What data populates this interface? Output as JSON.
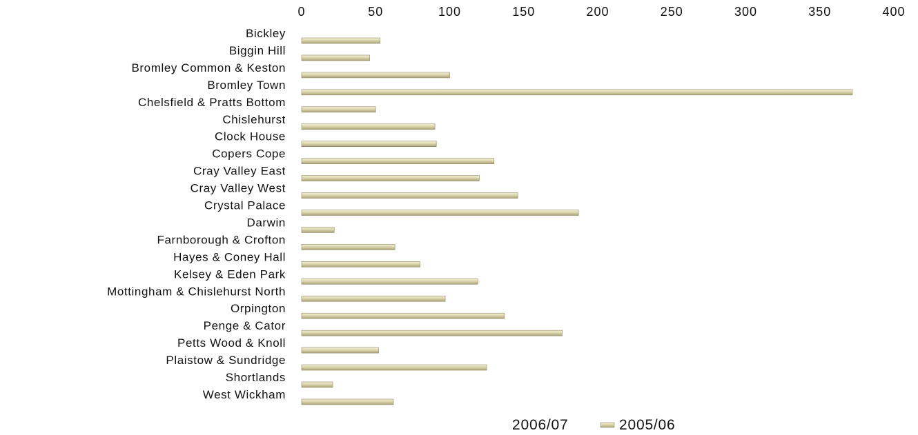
{
  "chart_data": {
    "type": "bar",
    "orientation": "horizontal",
    "categories": [
      "Bickley",
      "Biggin Hill",
      "Bromley Common & Keston",
      "Bromley Town",
      "Chelsfield & Pratts Bottom",
      "Chislehurst",
      "Clock House",
      "Copers Cope",
      "Cray Valley East",
      "Cray Valley West",
      "Crystal Palace",
      "Darwin",
      "Farnborough & Crofton",
      "Hayes & Coney Hall",
      "Kelsey & Eden Park",
      "Mottingham & Chislehurst North",
      "Orpington",
      "Penge & Cator",
      "Petts Wood & Knoll",
      "Plaistow & Sundridge",
      "Shortlands",
      "West Wickham"
    ],
    "series": [
      {
        "name": "2006/07",
        "color": "#ffffff",
        "values": [
          0,
          0,
          0,
          0,
          0,
          0,
          0,
          0,
          0,
          0,
          0,
          0,
          0,
          0,
          0,
          0,
          0,
          0,
          0,
          0,
          0,
          0
        ]
      },
      {
        "name": "2005/06",
        "color": "#d7d1a8",
        "values": [
          53,
          46,
          100,
          372,
          50,
          90,
          91,
          130,
          120,
          146,
          187,
          22,
          63,
          80,
          119,
          97,
          137,
          176,
          52,
          125,
          21,
          62
        ]
      }
    ],
    "xlim": [
      0,
      400
    ],
    "xticks": [
      0,
      50,
      100,
      150,
      200,
      250,
      300,
      350,
      400
    ],
    "xaxis_position": "top",
    "grid": false,
    "legend_position": "bottom-center"
  }
}
